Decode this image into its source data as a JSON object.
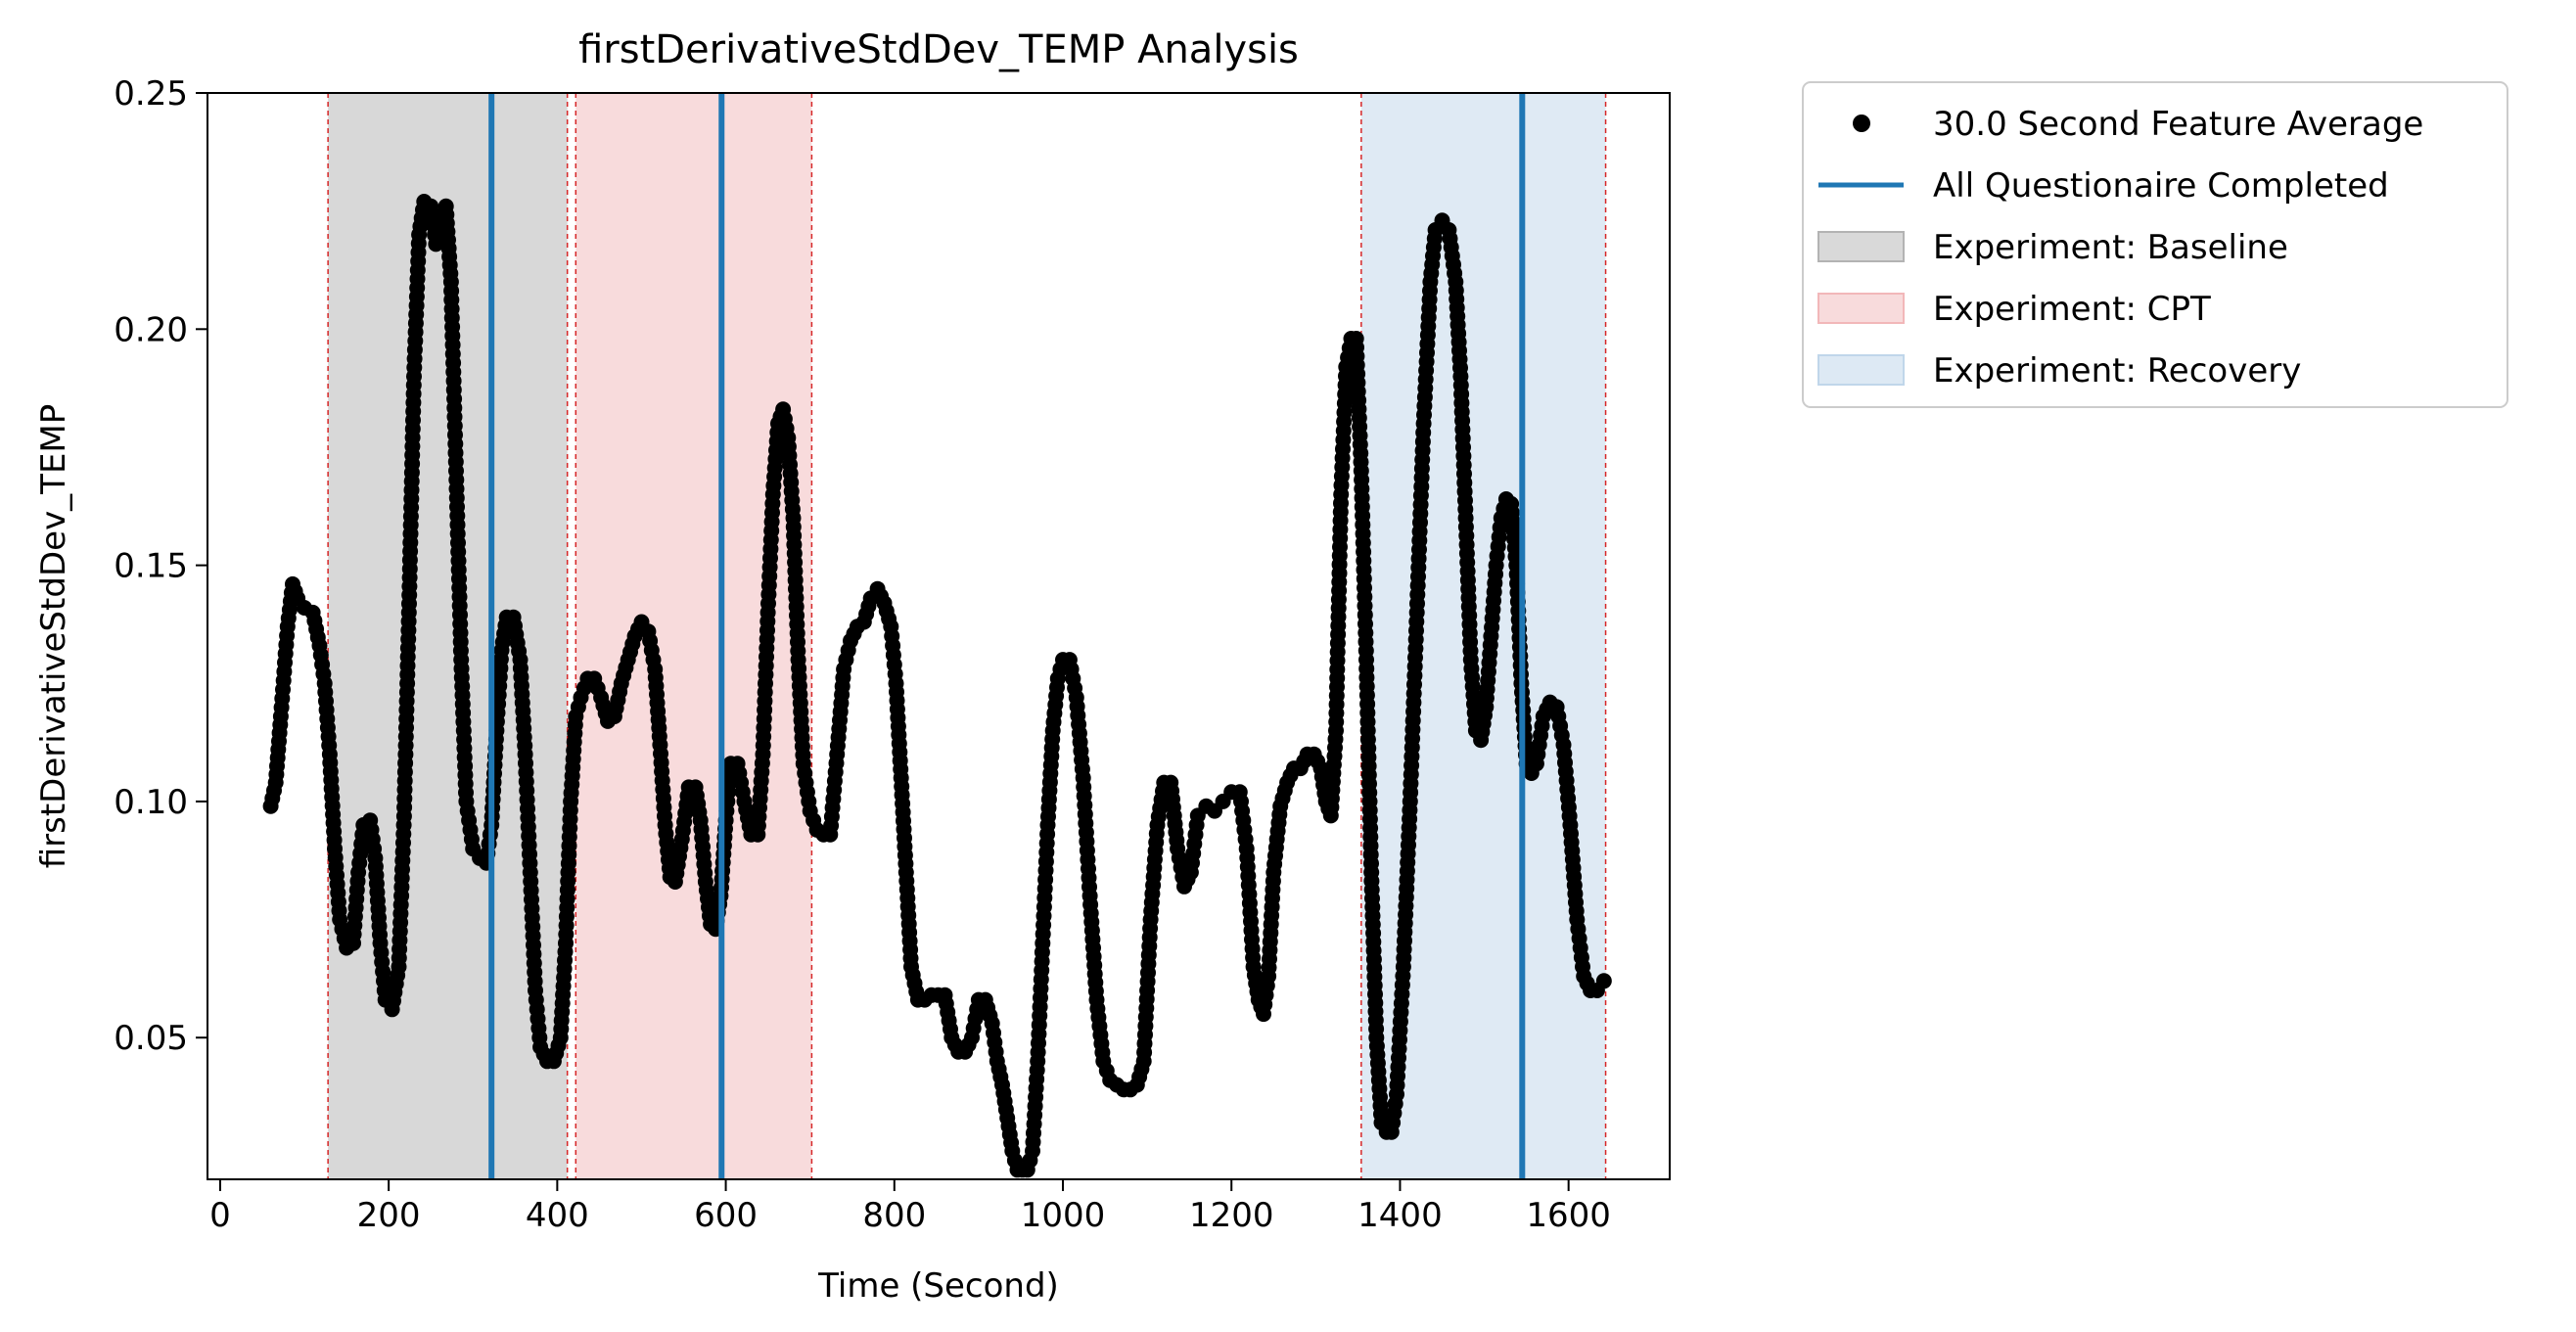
{
  "chart_data": {
    "type": "scatter",
    "title": "firstDerivativeStdDev_TEMP Analysis",
    "xlabel": "Time (Second)",
    "ylabel": "firstDerivativeStdDev_TEMP",
    "xlim": [
      -15,
      1720
    ],
    "ylim": [
      0.02,
      0.25
    ],
    "xticks": [
      0,
      200,
      400,
      600,
      800,
      1000,
      1200,
      1400,
      1600
    ],
    "yticks": [
      0.05,
      0.1,
      0.15,
      0.2,
      0.25
    ],
    "ytick_labels": [
      "0.05",
      "0.10",
      "0.15",
      "0.20",
      "0.25"
    ],
    "grid": false,
    "legend_placement": "outside-top-right",
    "series": [
      {
        "name": "30.0 Second Feature Average",
        "kind": "points",
        "color": "#000000",
        "points": [
          [
            60,
            0.099
          ],
          [
            66,
            0.104
          ],
          [
            72,
            0.118
          ],
          [
            80,
            0.137
          ],
          [
            86,
            0.146
          ],
          [
            92,
            0.143
          ],
          [
            100,
            0.141
          ],
          [
            110,
            0.14
          ],
          [
            118,
            0.133
          ],
          [
            124,
            0.125
          ],
          [
            130,
            0.11
          ],
          [
            136,
            0.09
          ],
          [
            142,
            0.075
          ],
          [
            150,
            0.069
          ],
          [
            158,
            0.07
          ],
          [
            164,
            0.085
          ],
          [
            170,
            0.095
          ],
          [
            178,
            0.096
          ],
          [
            184,
            0.088
          ],
          [
            190,
            0.07
          ],
          [
            196,
            0.058
          ],
          [
            204,
            0.056
          ],
          [
            212,
            0.065
          ],
          [
            218,
            0.095
          ],
          [
            224,
            0.14
          ],
          [
            230,
            0.19
          ],
          [
            236,
            0.22
          ],
          [
            242,
            0.227
          ],
          [
            250,
            0.226
          ],
          [
            256,
            0.218
          ],
          [
            262,
            0.224
          ],
          [
            268,
            0.226
          ],
          [
            274,
            0.21
          ],
          [
            280,
            0.17
          ],
          [
            286,
            0.13
          ],
          [
            292,
            0.1
          ],
          [
            300,
            0.09
          ],
          [
            308,
            0.088
          ],
          [
            316,
            0.087
          ],
          [
            322,
            0.095
          ],
          [
            328,
            0.115
          ],
          [
            334,
            0.132
          ],
          [
            340,
            0.139
          ],
          [
            348,
            0.139
          ],
          [
            356,
            0.13
          ],
          [
            362,
            0.11
          ],
          [
            368,
            0.085
          ],
          [
            374,
            0.06
          ],
          [
            380,
            0.048
          ],
          [
            388,
            0.045
          ],
          [
            396,
            0.045
          ],
          [
            404,
            0.05
          ],
          [
            410,
            0.07
          ],
          [
            416,
            0.1
          ],
          [
            422,
            0.118
          ],
          [
            428,
            0.122
          ],
          [
            436,
            0.126
          ],
          [
            444,
            0.126
          ],
          [
            452,
            0.122
          ],
          [
            460,
            0.117
          ],
          [
            468,
            0.118
          ],
          [
            476,
            0.125
          ],
          [
            484,
            0.13
          ],
          [
            492,
            0.135
          ],
          [
            500,
            0.138
          ],
          [
            508,
            0.136
          ],
          [
            516,
            0.128
          ],
          [
            522,
            0.112
          ],
          [
            528,
            0.095
          ],
          [
            534,
            0.084
          ],
          [
            540,
            0.083
          ],
          [
            548,
            0.092
          ],
          [
            556,
            0.103
          ],
          [
            564,
            0.103
          ],
          [
            570,
            0.096
          ],
          [
            576,
            0.083
          ],
          [
            582,
            0.074
          ],
          [
            588,
            0.073
          ],
          [
            594,
            0.08
          ],
          [
            600,
            0.096
          ],
          [
            606,
            0.108
          ],
          [
            614,
            0.108
          ],
          [
            622,
            0.1
          ],
          [
            630,
            0.093
          ],
          [
            638,
            0.093
          ],
          [
            644,
            0.11
          ],
          [
            650,
            0.14
          ],
          [
            656,
            0.165
          ],
          [
            662,
            0.18
          ],
          [
            668,
            0.183
          ],
          [
            674,
            0.177
          ],
          [
            680,
            0.16
          ],
          [
            686,
            0.13
          ],
          [
            692,
            0.108
          ],
          [
            700,
            0.098
          ],
          [
            708,
            0.094
          ],
          [
            716,
            0.093
          ],
          [
            724,
            0.093
          ],
          [
            732,
            0.11
          ],
          [
            740,
            0.128
          ],
          [
            748,
            0.134
          ],
          [
            756,
            0.137
          ],
          [
            764,
            0.138
          ],
          [
            772,
            0.143
          ],
          [
            780,
            0.145
          ],
          [
            788,
            0.142
          ],
          [
            796,
            0.137
          ],
          [
            802,
            0.125
          ],
          [
            808,
            0.105
          ],
          [
            814,
            0.085
          ],
          [
            820,
            0.065
          ],
          [
            828,
            0.058
          ],
          [
            836,
            0.058
          ],
          [
            844,
            0.059
          ],
          [
            852,
            0.059
          ],
          [
            860,
            0.059
          ],
          [
            868,
            0.05
          ],
          [
            876,
            0.047
          ],
          [
            884,
            0.047
          ],
          [
            892,
            0.05
          ],
          [
            900,
            0.058
          ],
          [
            908,
            0.058
          ],
          [
            916,
            0.053
          ],
          [
            922,
            0.045
          ],
          [
            928,
            0.04
          ],
          [
            934,
            0.033
          ],
          [
            940,
            0.026
          ],
          [
            946,
            0.022
          ],
          [
            952,
            0.022
          ],
          [
            958,
            0.022
          ],
          [
            964,
            0.026
          ],
          [
            970,
            0.045
          ],
          [
            976,
            0.07
          ],
          [
            982,
            0.095
          ],
          [
            988,
            0.115
          ],
          [
            994,
            0.126
          ],
          [
            1000,
            0.13
          ],
          [
            1008,
            0.13
          ],
          [
            1016,
            0.122
          ],
          [
            1024,
            0.105
          ],
          [
            1032,
            0.08
          ],
          [
            1040,
            0.058
          ],
          [
            1048,
            0.045
          ],
          [
            1056,
            0.041
          ],
          [
            1064,
            0.04
          ],
          [
            1072,
            0.039
          ],
          [
            1080,
            0.039
          ],
          [
            1088,
            0.04
          ],
          [
            1096,
            0.045
          ],
          [
            1104,
            0.075
          ],
          [
            1112,
            0.095
          ],
          [
            1120,
            0.104
          ],
          [
            1128,
            0.104
          ],
          [
            1136,
            0.09
          ],
          [
            1144,
            0.082
          ],
          [
            1152,
            0.085
          ],
          [
            1160,
            0.097
          ],
          [
            1170,
            0.099
          ],
          [
            1180,
            0.098
          ],
          [
            1190,
            0.1
          ],
          [
            1200,
            0.102
          ],
          [
            1210,
            0.102
          ],
          [
            1218,
            0.09
          ],
          [
            1226,
            0.065
          ],
          [
            1232,
            0.058
          ],
          [
            1238,
            0.055
          ],
          [
            1244,
            0.063
          ],
          [
            1250,
            0.085
          ],
          [
            1258,
            0.099
          ],
          [
            1266,
            0.104
          ],
          [
            1274,
            0.107
          ],
          [
            1282,
            0.107
          ],
          [
            1290,
            0.11
          ],
          [
            1298,
            0.11
          ],
          [
            1306,
            0.107
          ],
          [
            1312,
            0.1
          ],
          [
            1318,
            0.097
          ],
          [
            1324,
            0.115
          ],
          [
            1330,
            0.165
          ],
          [
            1336,
            0.192
          ],
          [
            1342,
            0.198
          ],
          [
            1348,
            0.198
          ],
          [
            1354,
            0.17
          ],
          [
            1360,
            0.13
          ],
          [
            1366,
            0.085
          ],
          [
            1372,
            0.05
          ],
          [
            1378,
            0.032
          ],
          [
            1384,
            0.03
          ],
          [
            1390,
            0.03
          ],
          [
            1396,
            0.038
          ],
          [
            1404,
            0.065
          ],
          [
            1412,
            0.1
          ],
          [
            1420,
            0.14
          ],
          [
            1428,
            0.18
          ],
          [
            1436,
            0.21
          ],
          [
            1442,
            0.221
          ],
          [
            1450,
            0.223
          ],
          [
            1458,
            0.221
          ],
          [
            1466,
            0.21
          ],
          [
            1472,
            0.19
          ],
          [
            1478,
            0.16
          ],
          [
            1484,
            0.13
          ],
          [
            1490,
            0.115
          ],
          [
            1496,
            0.113
          ],
          [
            1502,
            0.12
          ],
          [
            1508,
            0.135
          ],
          [
            1514,
            0.15
          ],
          [
            1520,
            0.16
          ],
          [
            1526,
            0.164
          ],
          [
            1532,
            0.163
          ],
          [
            1538,
            0.15
          ],
          [
            1544,
            0.125
          ],
          [
            1550,
            0.108
          ],
          [
            1556,
            0.106
          ],
          [
            1562,
            0.108
          ],
          [
            1570,
            0.118
          ],
          [
            1578,
            0.121
          ],
          [
            1586,
            0.12
          ],
          [
            1594,
            0.112
          ],
          [
            1602,
            0.095
          ],
          [
            1610,
            0.075
          ],
          [
            1618,
            0.063
          ],
          [
            1626,
            0.06
          ],
          [
            1634,
            0.06
          ],
          [
            1642,
            0.062
          ]
        ]
      },
      {
        "name": "All Questionaire Completed",
        "kind": "vlines",
        "color": "#1f77b4",
        "x": [
          322,
          595,
          1545
        ]
      }
    ],
    "regions": [
      {
        "name": "Experiment: Baseline",
        "x0": 128,
        "x1": 412,
        "color": "#7f7f7f",
        "opacity": 0.3
      },
      {
        "name": "Experiment: CPT",
        "x0": 422,
        "x1": 702,
        "color": "#e8888c",
        "opacity": 0.3
      },
      {
        "name": "Experiment: Recovery",
        "x0": 1354,
        "x1": 1644,
        "color": "#94bbdc",
        "opacity": 0.3
      }
    ],
    "boundary_lines": {
      "color": "#d62728",
      "x": [
        128,
        412,
        422,
        702,
        1354,
        1644
      ]
    }
  }
}
